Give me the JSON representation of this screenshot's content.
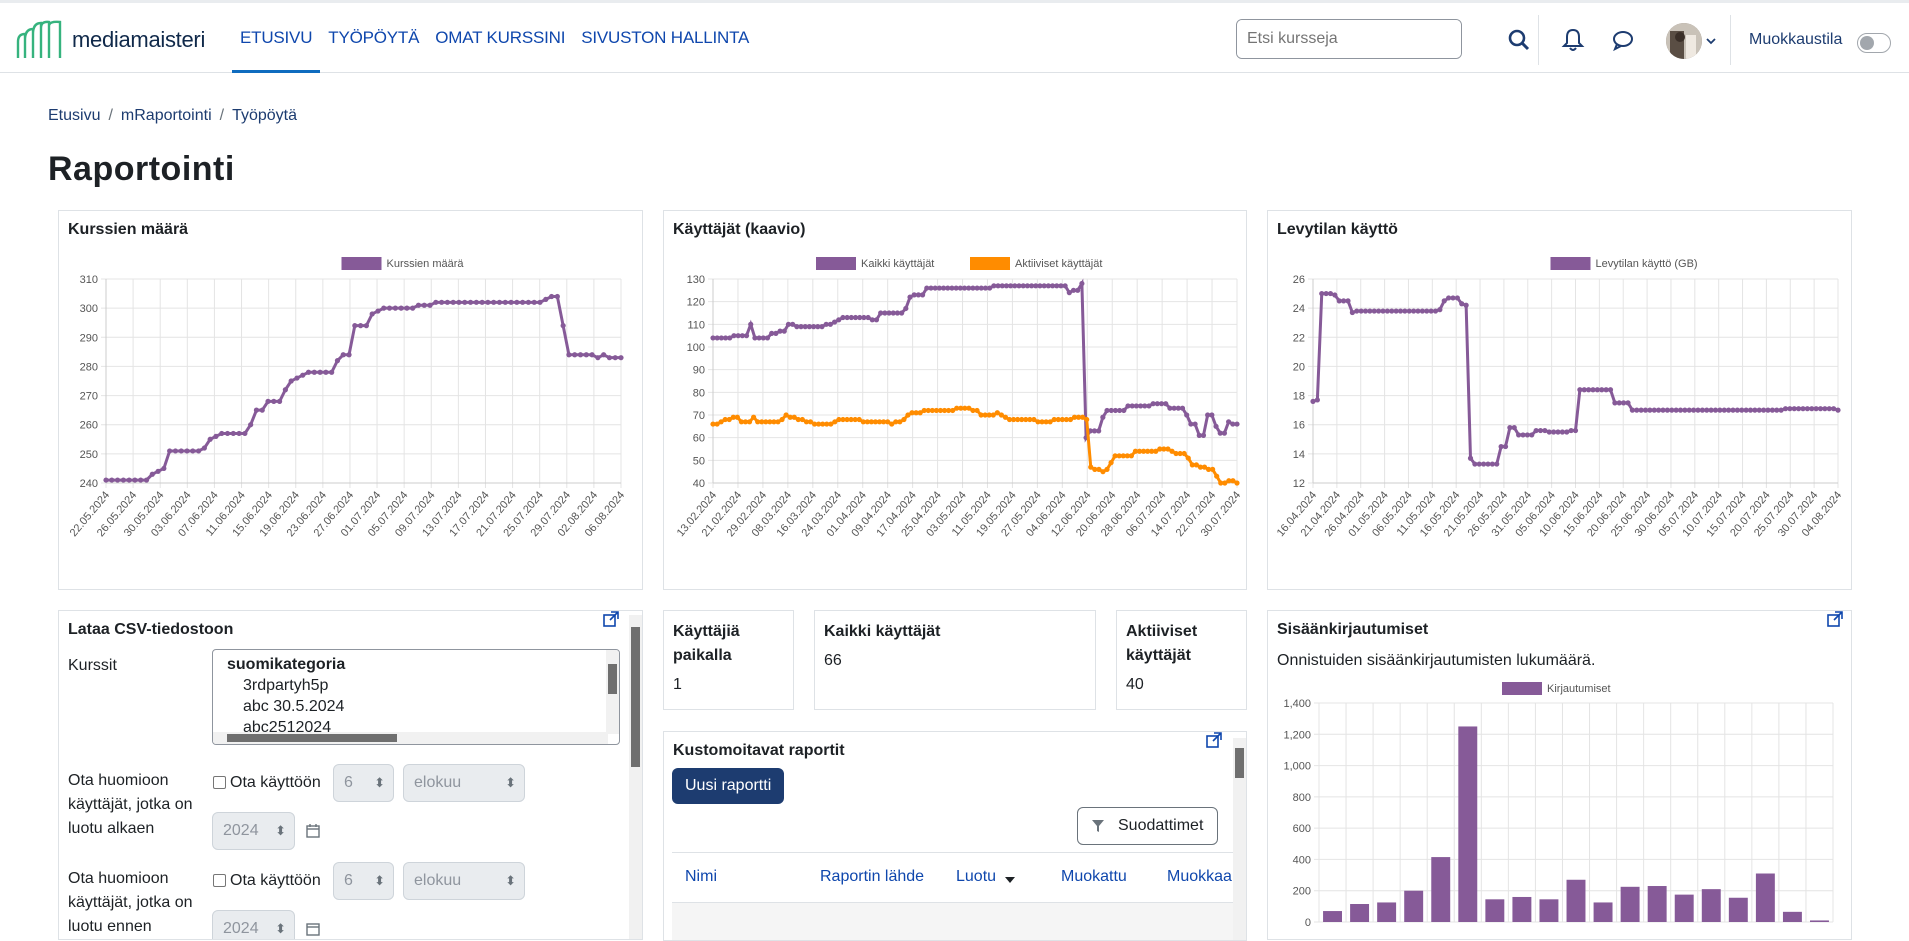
{
  "app": {
    "logo_text": "mediamaisteri"
  },
  "nav": [
    {
      "label": "ETUSIVU",
      "active": true
    },
    {
      "label": "TYÖPÖYTÄ"
    },
    {
      "label": "OMAT KURSSINI"
    },
    {
      "label": "SIVUSTON HALLINTA"
    }
  ],
  "search": {
    "placeholder": "Etsi kursseja"
  },
  "edit_mode": {
    "label": "Muokkaustila"
  },
  "breadcrumb": [
    "Etusivu",
    "mRaportointi",
    "Työpöytä"
  ],
  "page_title": "Raportointi",
  "colors": {
    "purple": "#865a98",
    "orange": "#ff8c00",
    "primary": "#1d3c70",
    "link": "#0f47ad"
  },
  "cards": {
    "kurssit": {
      "title": "Kurssien määrä"
    },
    "kayttajat": {
      "title": "Käyttäjät (kaavio)"
    },
    "levy": {
      "title": "Levytilan käyttö"
    },
    "csv": {
      "title": "Lataa CSV-tiedostoon",
      "kurssit_label": "Kurssit",
      "options": [
        "suomikategoria",
        "3rdpartyh5p",
        "abc 30.5.2024",
        "abc2512024"
      ],
      "created_after_label": "Ota huomioon käyttäjät, jotka on luotu alkaen",
      "created_before_label": "Ota huomioon käyttäjät, jotka on luotu ennen",
      "enable_label": "Ota käyttöön",
      "day": "6",
      "month": "elokuu",
      "year": "2024"
    },
    "online": {
      "title": "Käyttäjiä paikalla",
      "value": "1"
    },
    "all_users": {
      "title": "Kaikki käyttäjät",
      "value": "66"
    },
    "active_users": {
      "title": "Aktiiviset käyttäjät",
      "value": "40"
    },
    "logins": {
      "title": "Sisäänkirjautumiset",
      "subtitle": "Onnistuiden sisäänkirjautumisten lukumäärä."
    },
    "custom": {
      "title": "Kustomoitavat raportit",
      "new_button": "Uusi raportti",
      "filter_button": "Suodattimet",
      "columns": [
        "Nimi",
        "Raportin lähde",
        "Luotu",
        "Muokattu",
        "Muokkaa"
      ]
    }
  },
  "chart_data": [
    {
      "type": "line",
      "id": "kurssit",
      "series": [
        {
          "name": "Kurssien määrä",
          "values": [
            241,
            241,
            241,
            241,
            241,
            241,
            241,
            241,
            243,
            244,
            245,
            251,
            251,
            251,
            251,
            251,
            251,
            252,
            255,
            256,
            257,
            257,
            257,
            257,
            257,
            260,
            265,
            265,
            268,
            268,
            268,
            272,
            275,
            276,
            277,
            278,
            278,
            278,
            278,
            278,
            282,
            284,
            284,
            294,
            294,
            294,
            298,
            299,
            300,
            300,
            300,
            300,
            300,
            300,
            301,
            301,
            301,
            302,
            302,
            302,
            302,
            302,
            302,
            302,
            302,
            302,
            302,
            302,
            302,
            302,
            302,
            302,
            302,
            302,
            302,
            302,
            303,
            304,
            304,
            294,
            284,
            284,
            284,
            284,
            284,
            283,
            284,
            283,
            283,
            283
          ]
        }
      ],
      "x_labels": [
        "22.05.2024",
        "26.05.2024",
        "30.05.2024",
        "03.06.2024",
        "07.06.2024",
        "11.06.2024",
        "15.06.2024",
        "19.06.2024",
        "23.06.2024",
        "27.06.2024",
        "01.07.2024",
        "05.07.2024",
        "09.07.2024",
        "13.07.2024",
        "17.07.2024",
        "21.07.2024",
        "25.07.2024",
        "29.07.2024",
        "02.08.2024",
        "06.08.2024"
      ],
      "y_ticks": [
        240,
        250,
        260,
        270,
        280,
        290,
        300,
        310
      ],
      "ylim": [
        240,
        310
      ]
    },
    {
      "type": "line",
      "id": "kayttajat",
      "series": [
        {
          "name": "Kaikki käyttäjät",
          "values": [
            104,
            104,
            104,
            104,
            104,
            105,
            105,
            105,
            105,
            110,
            104,
            104,
            104,
            104,
            106,
            106,
            107,
            107,
            110,
            110,
            109,
            109,
            109,
            109,
            109,
            109,
            109,
            110,
            110,
            111,
            112,
            113,
            113,
            113,
            113,
            113,
            113,
            113,
            112,
            112,
            115,
            115,
            115,
            115,
            115,
            115,
            117,
            122,
            123,
            123,
            123,
            126,
            126,
            126,
            126,
            126,
            126,
            126,
            126,
            126,
            126,
            126,
            126,
            126,
            126,
            126,
            126,
            127,
            127,
            127,
            127,
            127,
            127,
            127,
            127,
            127,
            127,
            127,
            127,
            127,
            127,
            127,
            127,
            127,
            127,
            124,
            125,
            125,
            128,
            60,
            63,
            63,
            63,
            69,
            72,
            72,
            72,
            72,
            72,
            74,
            74,
            74,
            74,
            74,
            74,
            75,
            75,
            75,
            75,
            73,
            73,
            73,
            73,
            70,
            66,
            66,
            61,
            61,
            70,
            70,
            65,
            62,
            62,
            67,
            66,
            66
          ]
        },
        {
          "name": "Aktiiviset käyttäjät",
          "values": [
            66,
            66,
            67,
            68,
            68,
            69,
            69,
            67,
            67,
            67,
            69,
            67,
            67,
            67,
            67,
            67,
            67,
            68,
            70,
            69,
            69,
            68,
            68,
            67,
            67,
            66,
            66,
            66,
            66,
            66,
            67,
            68,
            68,
            68,
            68,
            68,
            68,
            67,
            67,
            67,
            67,
            67,
            67,
            67,
            66,
            67,
            67,
            68,
            70,
            71,
            71,
            71,
            72,
            72,
            72,
            72,
            72,
            72,
            72,
            72,
            73,
            73,
            73,
            73,
            72,
            72,
            70,
            70,
            70,
            70,
            71,
            70,
            69,
            68,
            68,
            68,
            68,
            68,
            68,
            68,
            67,
            67,
            67,
            67,
            68,
            68,
            68,
            68,
            68,
            69,
            69,
            69,
            68,
            47,
            46,
            46,
            45,
            46,
            49,
            52,
            52,
            52,
            52,
            52,
            54,
            54,
            54,
            54,
            54,
            54,
            55,
            55,
            55,
            54,
            53,
            53,
            53,
            51,
            48,
            48,
            47,
            47,
            46,
            46,
            43,
            40,
            40,
            41,
            41,
            40
          ]
        }
      ],
      "x_labels": [
        "13.02.2024",
        "21.02.2024",
        "29.02.2024",
        "08.03.2024",
        "16.03.2024",
        "24.03.2024",
        "01.04.2024",
        "09.04.2024",
        "17.04.2024",
        "25.04.2024",
        "03.05.2024",
        "11.05.2024",
        "19.05.2024",
        "27.05.2024",
        "04.06.2024",
        "12.06.2024",
        "20.06.2024",
        "28.06.2024",
        "06.07.2024",
        "14.07.2024",
        "22.07.2024",
        "30.07.2024"
      ],
      "y_ticks": [
        40,
        50,
        60,
        70,
        80,
        90,
        100,
        110,
        120,
        130
      ],
      "ylim": [
        40,
        130
      ]
    },
    {
      "type": "line",
      "id": "levy",
      "series": [
        {
          "name": "Levytilan käyttö (GB)",
          "values": [
            17.6,
            17.7,
            25,
            25,
            25,
            24.9,
            24.5,
            24.5,
            24.5,
            23.7,
            23.8,
            23.8,
            23.8,
            23.8,
            23.8,
            23.8,
            23.8,
            23.8,
            23.8,
            23.8,
            23.8,
            23.8,
            23.8,
            23.8,
            23.8,
            23.8,
            23.8,
            23.8,
            23.8,
            23.9,
            24.5,
            24.7,
            24.7,
            24.7,
            24.3,
            24.2,
            13.7,
            13.3,
            13.3,
            13.3,
            13.3,
            13.3,
            13.3,
            14.5,
            14.5,
            15.8,
            15.8,
            15.3,
            15.3,
            15.3,
            15.3,
            15.6,
            15.6,
            15.6,
            15.5,
            15.5,
            15.5,
            15.5,
            15.5,
            15.6,
            15.6,
            18.4,
            18.4,
            18.4,
            18.4,
            18.4,
            18.4,
            18.4,
            18.4,
            17.5,
            17.5,
            17.5,
            17.5,
            17,
            17,
            17,
            17,
            17,
            17,
            17,
            17,
            17,
            17,
            17,
            17,
            17,
            17,
            17,
            17,
            17,
            17,
            17,
            17,
            17,
            17,
            17,
            17,
            17,
            17,
            17,
            17,
            17,
            17,
            17,
            17,
            17,
            17,
            17,
            17.1,
            17.1,
            17.1,
            17.1,
            17.1,
            17.1,
            17.1,
            17.1,
            17.1,
            17.1,
            17.1,
            17.1,
            17
          ]
        }
      ],
      "x_labels": [
        "16.04.2024",
        "21.04.2024",
        "26.04.2024",
        "01.05.2024",
        "06.05.2024",
        "11.05.2024",
        "16.05.2024",
        "21.05.2024",
        "26.05.2024",
        "31.05.2024",
        "05.06.2024",
        "10.06.2024",
        "15.06.2024",
        "20.06.2024",
        "25.06.2024",
        "30.06.2024",
        "05.07.2024",
        "10.07.2024",
        "15.07.2024",
        "20.07.2024",
        "25.07.2024",
        "30.07.2024",
        "04.08.2024"
      ],
      "y_ticks": [
        12,
        14,
        16,
        18,
        20,
        22,
        24,
        26
      ],
      "ylim": [
        12,
        26
      ]
    },
    {
      "type": "bar",
      "id": "logins",
      "series": [
        {
          "name": "Kirjautumiset",
          "values": [
            70,
            115,
            125,
            200,
            415,
            1250,
            145,
            160,
            145,
            270,
            125,
            225,
            230,
            175,
            210,
            155,
            310,
            65,
            10
          ]
        }
      ],
      "y_ticks": [
        "0",
        "200",
        "400",
        "600",
        "800",
        "1,000",
        "1,200",
        "1,400"
      ],
      "ylim": [
        0,
        1400
      ]
    }
  ]
}
